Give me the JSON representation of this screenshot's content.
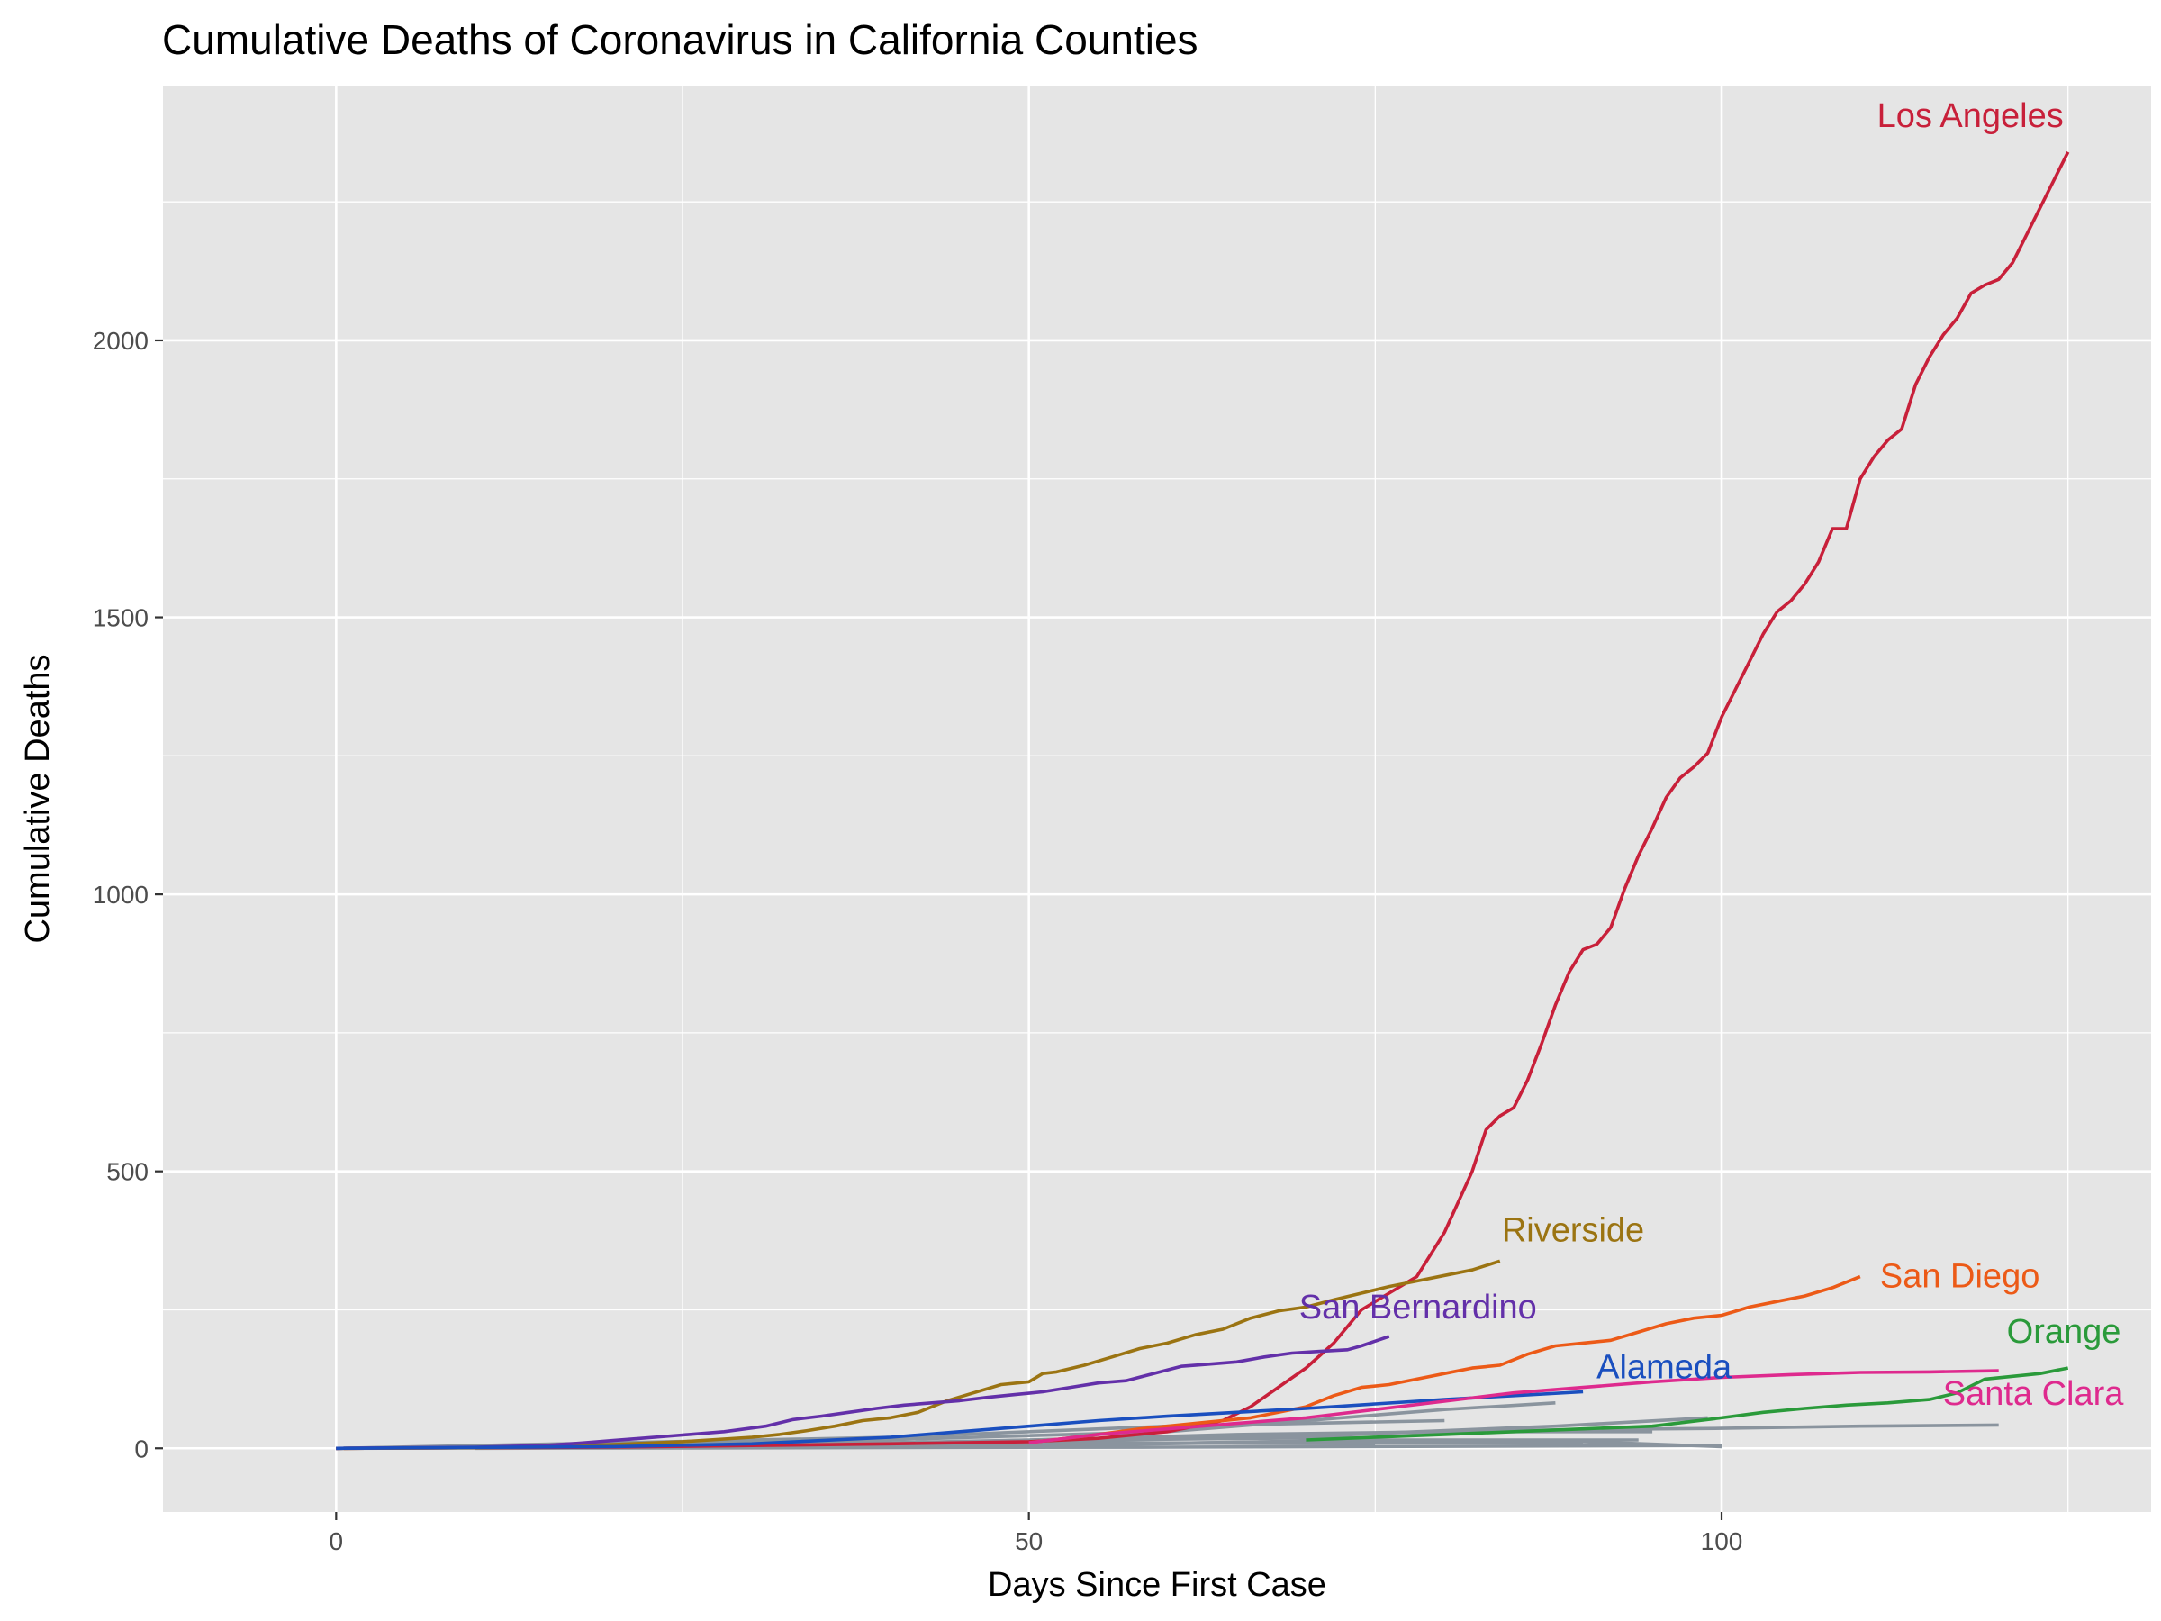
{
  "chart_data": {
    "type": "line",
    "title": "Cumulative Deaths of Coronavirus in California Counties",
    "xlabel": "Days Since First Case",
    "ylabel": "Cumulative Deaths",
    "xlim": [
      -12.5,
      131
    ],
    "ylim": [
      -115,
      2460
    ],
    "x_ticks": [
      0,
      50,
      100
    ],
    "y_ticks": [
      0,
      500,
      1000,
      1500,
      2000
    ],
    "grid": true,
    "background": "#e5e5e5",
    "legend": "direct labels at line ends",
    "series": [
      {
        "name": "Los Angeles",
        "color": "#c8203a",
        "x": [
          0,
          10,
          20,
          30,
          40,
          50,
          55,
          60,
          64,
          66,
          68,
          70,
          72,
          74,
          76,
          78,
          80,
          82,
          83,
          84,
          85,
          86,
          87,
          88,
          89,
          90,
          91,
          92,
          93,
          94,
          95,
          96,
          97,
          98,
          99,
          100,
          101,
          102,
          103,
          104,
          105,
          106,
          107,
          108,
          109,
          110,
          111,
          112,
          113,
          114,
          115,
          116,
          117,
          118,
          119,
          120,
          121,
          122,
          123,
          124,
          125
        ],
        "values": [
          0,
          1,
          2,
          5,
          8,
          12,
          18,
          30,
          50,
          75,
          110,
          145,
          190,
          250,
          280,
          310,
          390,
          500,
          575,
          600,
          615,
          665,
          730,
          800,
          860,
          900,
          910,
          940,
          1010,
          1070,
          1120,
          1175,
          1210,
          1230,
          1255,
          1320,
          1370,
          1420,
          1470,
          1510,
          1530,
          1560,
          1600,
          1660,
          1660,
          1750,
          1790,
          1820,
          1840,
          1920,
          1970,
          2010,
          2040,
          2085,
          2100,
          2110,
          2140,
          2190,
          2240,
          2290,
          2340
        ]
      },
      {
        "name": "Riverside",
        "color": "#9b7412",
        "x": [
          0,
          10,
          15,
          20,
          25,
          30,
          32,
          34,
          36,
          38,
          40,
          42,
          44,
          46,
          48,
          50,
          51,
          52,
          54,
          56,
          58,
          60,
          62,
          64,
          66,
          68,
          70,
          72,
          74,
          76,
          78,
          80,
          82,
          84
        ],
        "values": [
          0,
          1,
          3,
          7,
          12,
          20,
          25,
          32,
          40,
          50,
          55,
          65,
          85,
          100,
          115,
          120,
          135,
          138,
          150,
          165,
          180,
          190,
          205,
          215,
          235,
          248,
          255,
          268,
          280,
          292,
          302,
          312,
          322,
          338
        ]
      },
      {
        "name": "San Diego",
        "color": "#ec5a17",
        "x": [
          50,
          55,
          58,
          62,
          66,
          70,
          72,
          74,
          76,
          78,
          80,
          82,
          84,
          86,
          88,
          90,
          92,
          94,
          96,
          98,
          100,
          102,
          104,
          106,
          108,
          110
        ],
        "values": [
          10,
          25,
          35,
          45,
          55,
          75,
          95,
          110,
          115,
          125,
          135,
          145,
          150,
          170,
          185,
          190,
          195,
          210,
          225,
          235,
          240,
          255,
          265,
          275,
          290,
          310
        ]
      },
      {
        "name": "San Bernardino",
        "color": "#6330a9",
        "x": [
          0,
          10,
          15,
          18,
          20,
          22,
          25,
          28,
          31,
          33,
          35,
          37,
          39,
          41,
          43,
          45,
          47,
          49,
          51,
          53,
          55,
          57,
          59,
          61,
          63,
          65,
          67,
          69,
          71,
          73,
          74,
          76
        ],
        "values": [
          0,
          2,
          5,
          10,
          14,
          18,
          24,
          30,
          40,
          52,
          58,
          65,
          72,
          78,
          82,
          86,
          92,
          97,
          102,
          110,
          118,
          122,
          135,
          148,
          152,
          156,
          165,
          172,
          175,
          178,
          185,
          202
        ]
      },
      {
        "name": "Alameda",
        "color": "#1a4fbf",
        "x": [
          0,
          20,
          30,
          40,
          45,
          50,
          55,
          60,
          65,
          70,
          75,
          80,
          85,
          90
        ],
        "values": [
          0,
          3,
          8,
          20,
          30,
          40,
          50,
          58,
          65,
          72,
          80,
          88,
          95,
          102
        ]
      },
      {
        "name": "Santa Clara",
        "color": "#de2a8e",
        "x": [
          50,
          55,
          60,
          65,
          70,
          75,
          80,
          85,
          90,
          95,
          100,
          105,
          110,
          115,
          120
        ],
        "values": [
          10,
          25,
          35,
          45,
          55,
          70,
          85,
          100,
          110,
          120,
          128,
          133,
          137,
          138,
          140
        ]
      },
      {
        "name": "Orange",
        "color": "#2a9a3a",
        "x": [
          70,
          80,
          90,
          95,
          100,
          103,
          106,
          109,
          112,
          115,
          117,
          119,
          121,
          123,
          125
        ],
        "values": [
          15,
          25,
          35,
          40,
          55,
          65,
          72,
          78,
          82,
          88,
          100,
          125,
          130,
          135,
          145
        ]
      }
    ],
    "other_counties": {
      "color": "#8a949e",
      "lines": [
        {
          "x": [
            0,
            40,
            70,
            85,
            90,
            100,
            110,
            120
          ],
          "values": [
            0,
            10,
            25,
            32,
            34,
            36,
            40,
            42
          ]
        },
        {
          "x": [
            0,
            40,
            70,
            88,
            99
          ],
          "values": [
            0,
            8,
            22,
            40,
            55
          ]
        },
        {
          "x": [
            0,
            35,
            60,
            80,
            88
          ],
          "values": [
            0,
            12,
            30,
            70,
            82
          ]
        },
        {
          "x": [
            0,
            40,
            65,
            80,
            95
          ],
          "values": [
            0,
            8,
            25,
            30,
            30
          ]
        },
        {
          "x": [
            0,
            45,
            70,
            90,
            100
          ],
          "values": [
            0,
            5,
            12,
            12,
            3
          ]
        },
        {
          "x": [
            0,
            50,
            75,
            94
          ],
          "values": [
            0,
            5,
            15,
            15
          ]
        },
        {
          "x": [
            0,
            40,
            60,
            80
          ],
          "values": [
            0,
            20,
            40,
            50
          ]
        },
        {
          "x": [
            0,
            30,
            55,
            75
          ],
          "values": [
            0,
            5,
            15,
            20
          ]
        },
        {
          "x": [
            0,
            45,
            65,
            90
          ],
          "values": [
            0,
            3,
            10,
            10
          ]
        },
        {
          "x": [
            0,
            55,
            75
          ],
          "values": [
            0,
            10,
            8
          ]
        },
        {
          "x": [
            10,
            60,
            100
          ],
          "values": [
            0,
            2,
            5
          ]
        }
      ]
    }
  }
}
